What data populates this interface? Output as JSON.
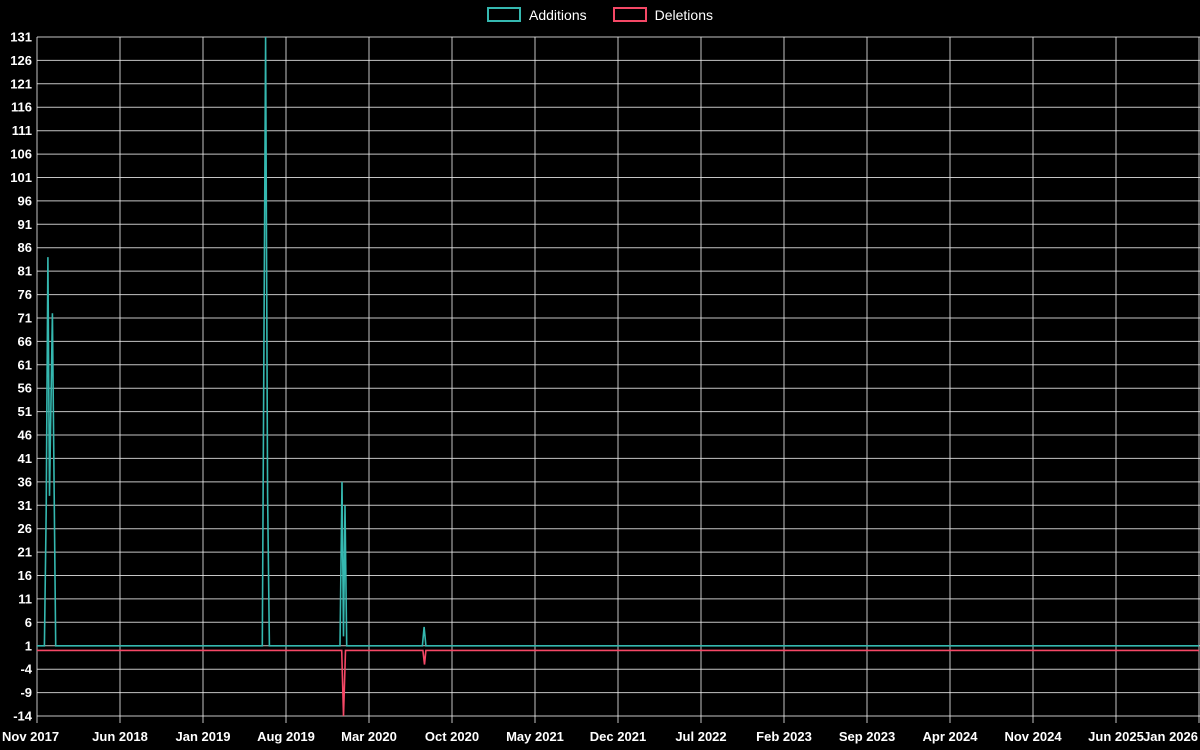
{
  "legend": {
    "items": [
      {
        "label": "Additions",
        "color": "#35b8b0"
      },
      {
        "label": "Deletions",
        "color": "#f54866"
      }
    ]
  },
  "chart_data": {
    "type": "line",
    "title": "",
    "xlabel": "",
    "ylabel": "",
    "background": "#000000",
    "grid": true,
    "grid_color": "#e8e8e8",
    "text_color": "#ffffff",
    "x_ticks": [
      "Nov 2017",
      "Jun 2018",
      "Jan 2019",
      "Aug 2019",
      "Mar 2020",
      "Oct 2020",
      "May 2021",
      "Dec 2021",
      "Jul 2022",
      "Feb 2023",
      "Sep 2023",
      "Apr 2024",
      "Nov 2024",
      "Jun 2025",
      "Jan 2026"
    ],
    "x_tick_interval_months": 7,
    "x_months_range": [
      0,
      98
    ],
    "y_ticks": [
      131,
      126,
      121,
      116,
      111,
      106,
      101,
      96,
      91,
      86,
      81,
      76,
      71,
      66,
      61,
      56,
      51,
      46,
      41,
      36,
      31,
      26,
      21,
      16,
      11,
      6,
      1,
      -4,
      -9,
      -14
    ],
    "ylim": [
      -14,
      131
    ],
    "legend_position": "top-center",
    "series": [
      {
        "name": "Additions",
        "color": "#35b8b0",
        "baseline": 1,
        "points": [
          [
            0,
            1
          ],
          [
            0.62,
            1
          ],
          [
            0.78,
            30
          ],
          [
            0.92,
            84
          ],
          [
            1.05,
            33
          ],
          [
            1.3,
            72
          ],
          [
            1.45,
            33
          ],
          [
            1.58,
            1
          ],
          [
            19.0,
            1
          ],
          [
            19.28,
            131
          ],
          [
            19.45,
            33
          ],
          [
            19.6,
            1
          ],
          [
            25.55,
            1
          ],
          [
            25.72,
            36
          ],
          [
            25.85,
            3
          ],
          [
            25.98,
            31
          ],
          [
            26.12,
            1
          ],
          [
            32.5,
            1
          ],
          [
            32.65,
            5
          ],
          [
            32.8,
            1
          ],
          [
            98,
            1
          ]
        ]
      },
      {
        "name": "Deletions",
        "color": "#f54866",
        "baseline": 0,
        "points": [
          [
            0,
            0
          ],
          [
            25.7,
            0
          ],
          [
            25.85,
            -14
          ],
          [
            26.02,
            0
          ],
          [
            32.55,
            0
          ],
          [
            32.68,
            -3
          ],
          [
            32.8,
            0
          ],
          [
            98,
            0
          ]
        ]
      }
    ]
  }
}
